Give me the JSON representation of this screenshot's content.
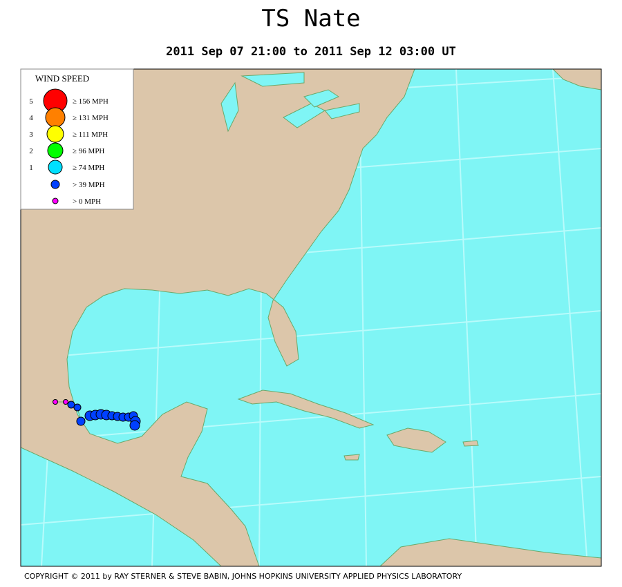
{
  "header": {
    "title": "TS Nate",
    "subtitle": "2011 Sep 07 21:00 to 2011 Sep 12 03:00 UT"
  },
  "legend": {
    "title": "WIND SPEED",
    "items": [
      {
        "category": "5",
        "label": "≥ 156 MPH",
        "color": "#ff0000"
      },
      {
        "category": "4",
        "label": "≥ 131 MPH",
        "color": "#ff8000"
      },
      {
        "category": "3",
        "label": "≥ 111 MPH",
        "color": "#ffff00"
      },
      {
        "category": "2",
        "label": "≥ 96 MPH",
        "color": "#00ff00"
      },
      {
        "category": "1",
        "label": "≥ 74 MPH",
        "color": "#00e0ff"
      },
      {
        "label": "> 39 MPH",
        "color": "#0040ff"
      },
      {
        "label": "> 0 MPH",
        "color": "#ff00ff"
      }
    ]
  },
  "footer": {
    "copyright": "COPYRIGHT © 2011 by RAY STERNER & STEVE BABIN, JOHNS HOPKINS UNIVERSITY APPLIED PHYSICS LABORATORY"
  }
}
